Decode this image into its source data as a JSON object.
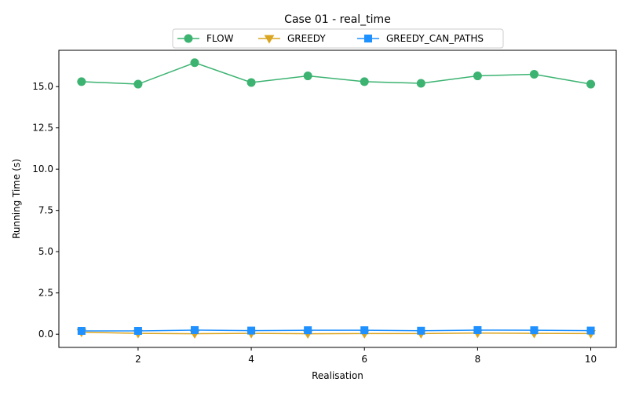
{
  "chart_data": {
    "type": "line",
    "title": "Case 01 - real_time",
    "xlabel": "Realisation",
    "ylabel": "Running Time (s)",
    "x": [
      1,
      2,
      3,
      4,
      5,
      6,
      7,
      8,
      9,
      10
    ],
    "xlim": [
      0.6,
      10.45
    ],
    "ylim": [
      -0.8,
      17.2
    ],
    "xticks": [
      2,
      4,
      6,
      8,
      10
    ],
    "yticks": [
      0.0,
      2.5,
      5.0,
      7.5,
      10.0,
      12.5,
      15.0
    ],
    "ytick_labels": [
      "0.0",
      "2.5",
      "5.0",
      "7.5",
      "10.0",
      "12.5",
      "15.0"
    ],
    "grid": false,
    "legend_placement": "top-center",
    "series": [
      {
        "name": "FLOW",
        "color": "#3cb371",
        "marker": "circle",
        "values": [
          15.3,
          15.15,
          16.45,
          15.25,
          15.65,
          15.3,
          15.2,
          15.65,
          15.75,
          15.15
        ]
      },
      {
        "name": "GREEDY",
        "color": "#daa520",
        "marker": "triangle-down",
        "values": [
          0.12,
          0.05,
          0.03,
          0.05,
          0.03,
          0.04,
          0.04,
          0.07,
          0.05,
          0.04
        ]
      },
      {
        "name": "GREEDY_CAN_PATHS",
        "color": "#1e90ff",
        "marker": "square",
        "values": [
          0.2,
          0.2,
          0.25,
          0.22,
          0.24,
          0.24,
          0.21,
          0.25,
          0.24,
          0.22
        ]
      }
    ]
  }
}
